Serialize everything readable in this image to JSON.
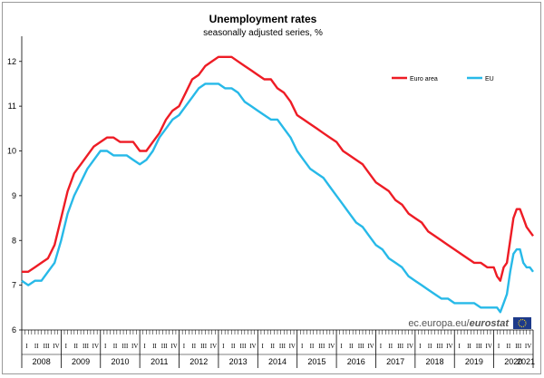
{
  "source": {
    "prefix": "ec.europa.eu/",
    "brand": "eurostat"
  },
  "chart_data": {
    "type": "line",
    "title": "Unemployment rates",
    "subtitle": "seasonally adjusted series, %",
    "ylim": [
      6,
      12.4
    ],
    "yticks": [
      "6",
      "7",
      "8",
      "9",
      "10",
      "11",
      "12"
    ],
    "grid": false,
    "legend_position": "top-right",
    "x_start": "2008-01",
    "x_end": "2021-01",
    "year_labels": [
      "2008",
      "2009",
      "2010",
      "2011",
      "2012",
      "2013",
      "2014",
      "2015",
      "2016",
      "2017",
      "2018",
      "2019",
      "2020",
      "2021"
    ],
    "quarter_labels": [
      "I",
      "II",
      "III",
      "IV"
    ],
    "series": [
      {
        "name": "Euro area",
        "color": "#ee1c25",
        "x": [
          "2008-01",
          "2008-03",
          "2008-05",
          "2008-07",
          "2008-09",
          "2008-11",
          "2009-01",
          "2009-03",
          "2009-05",
          "2009-07",
          "2009-09",
          "2009-11",
          "2010-01",
          "2010-03",
          "2010-05",
          "2010-07",
          "2010-09",
          "2010-11",
          "2011-01",
          "2011-03",
          "2011-05",
          "2011-07",
          "2011-09",
          "2011-11",
          "2012-01",
          "2012-03",
          "2012-05",
          "2012-07",
          "2012-09",
          "2012-11",
          "2013-01",
          "2013-03",
          "2013-05",
          "2013-07",
          "2013-09",
          "2013-11",
          "2014-01",
          "2014-03",
          "2014-05",
          "2014-07",
          "2014-09",
          "2014-11",
          "2015-01",
          "2015-03",
          "2015-05",
          "2015-07",
          "2015-09",
          "2015-11",
          "2016-01",
          "2016-03",
          "2016-05",
          "2016-07",
          "2016-09",
          "2016-11",
          "2017-01",
          "2017-03",
          "2017-05",
          "2017-07",
          "2017-09",
          "2017-11",
          "2018-01",
          "2018-03",
          "2018-05",
          "2018-07",
          "2018-09",
          "2018-11",
          "2019-01",
          "2019-03",
          "2019-05",
          "2019-07",
          "2019-09",
          "2019-11",
          "2020-01",
          "2020-02",
          "2020-03",
          "2020-04",
          "2020-05",
          "2020-06",
          "2020-07",
          "2020-08",
          "2020-09",
          "2020-10",
          "2020-11",
          "2020-12",
          "2021-01"
        ],
        "values": [
          7.3,
          7.3,
          7.4,
          7.5,
          7.6,
          7.9,
          8.5,
          9.1,
          9.5,
          9.7,
          9.9,
          10.1,
          10.2,
          10.3,
          10.3,
          10.2,
          10.2,
          10.2,
          10.0,
          10.0,
          10.2,
          10.4,
          10.7,
          10.9,
          11.0,
          11.3,
          11.6,
          11.7,
          11.9,
          12.0,
          12.1,
          12.1,
          12.1,
          12.0,
          11.9,
          11.8,
          11.7,
          11.6,
          11.6,
          11.4,
          11.3,
          11.1,
          10.8,
          10.7,
          10.6,
          10.5,
          10.4,
          10.3,
          10.2,
          10.0,
          9.9,
          9.8,
          9.7,
          9.5,
          9.3,
          9.2,
          9.1,
          8.9,
          8.8,
          8.6,
          8.5,
          8.4,
          8.2,
          8.1,
          8.0,
          7.9,
          7.8,
          7.7,
          7.6,
          7.5,
          7.5,
          7.4,
          7.4,
          7.2,
          7.1,
          7.4,
          7.5,
          8.0,
          8.5,
          8.7,
          8.7,
          8.5,
          8.3,
          8.2,
          8.1
        ]
      },
      {
        "name": "EU",
        "color": "#27b9e8",
        "x": [
          "2008-01",
          "2008-03",
          "2008-05",
          "2008-07",
          "2008-09",
          "2008-11",
          "2009-01",
          "2009-03",
          "2009-05",
          "2009-07",
          "2009-09",
          "2009-11",
          "2010-01",
          "2010-03",
          "2010-05",
          "2010-07",
          "2010-09",
          "2010-11",
          "2011-01",
          "2011-03",
          "2011-05",
          "2011-07",
          "2011-09",
          "2011-11",
          "2012-01",
          "2012-03",
          "2012-05",
          "2012-07",
          "2012-09",
          "2012-11",
          "2013-01",
          "2013-03",
          "2013-05",
          "2013-07",
          "2013-09",
          "2013-11",
          "2014-01",
          "2014-03",
          "2014-05",
          "2014-07",
          "2014-09",
          "2014-11",
          "2015-01",
          "2015-03",
          "2015-05",
          "2015-07",
          "2015-09",
          "2015-11",
          "2016-01",
          "2016-03",
          "2016-05",
          "2016-07",
          "2016-09",
          "2016-11",
          "2017-01",
          "2017-03",
          "2017-05",
          "2017-07",
          "2017-09",
          "2017-11",
          "2018-01",
          "2018-03",
          "2018-05",
          "2018-07",
          "2018-09",
          "2018-11",
          "2019-01",
          "2019-03",
          "2019-05",
          "2019-07",
          "2019-09",
          "2019-11",
          "2020-01",
          "2020-02",
          "2020-03",
          "2020-04",
          "2020-05",
          "2020-06",
          "2020-07",
          "2020-08",
          "2020-09",
          "2020-10",
          "2020-11",
          "2020-12",
          "2021-01"
        ],
        "values": [
          7.1,
          7.0,
          7.1,
          7.1,
          7.3,
          7.5,
          8.0,
          8.6,
          9.0,
          9.3,
          9.6,
          9.8,
          10.0,
          10.0,
          9.9,
          9.9,
          9.9,
          9.8,
          9.7,
          9.8,
          10.0,
          10.3,
          10.5,
          10.7,
          10.8,
          11.0,
          11.2,
          11.4,
          11.5,
          11.5,
          11.5,
          11.4,
          11.4,
          11.3,
          11.1,
          11.0,
          10.9,
          10.8,
          10.7,
          10.7,
          10.5,
          10.3,
          10.0,
          9.8,
          9.6,
          9.5,
          9.4,
          9.2,
          9.0,
          8.8,
          8.6,
          8.4,
          8.3,
          8.1,
          7.9,
          7.8,
          7.6,
          7.5,
          7.4,
          7.2,
          7.1,
          7.0,
          6.9,
          6.8,
          6.7,
          6.7,
          6.6,
          6.6,
          6.6,
          6.6,
          6.5,
          6.5,
          6.5,
          6.5,
          6.4,
          6.6,
          6.8,
          7.3,
          7.7,
          7.8,
          7.8,
          7.5,
          7.4,
          7.4,
          7.3
        ]
      }
    ]
  }
}
